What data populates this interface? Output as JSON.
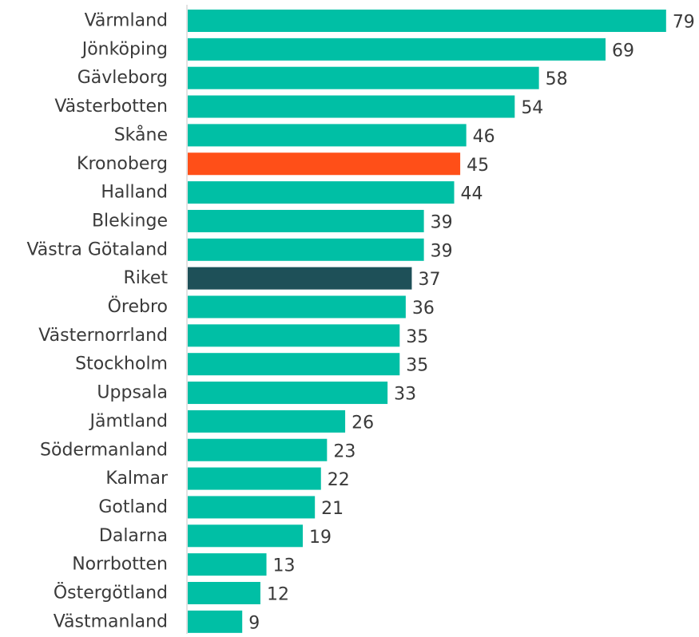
{
  "chart_data": {
    "type": "bar",
    "orientation": "horizontal",
    "categories": [
      "Värmland",
      "Jönköping",
      "Gävleborg",
      "Västerbotten",
      "Skåne",
      "Kronoberg",
      "Halland",
      "Blekinge",
      "Västra Götaland",
      "Riket",
      "Örebro",
      "Västernorrland",
      "Stockholm",
      "Uppsala",
      "Jämtland",
      "Södermanland",
      "Kalmar",
      "Gotland",
      "Dalarna",
      "Norrbotten",
      "Östergötland",
      "Västmanland"
    ],
    "values": [
      79,
      69,
      58,
      54,
      46,
      45,
      44,
      39,
      39,
      37,
      36,
      35,
      35,
      33,
      26,
      23,
      22,
      21,
      19,
      13,
      12,
      9
    ],
    "title": "",
    "xlabel": "",
    "ylabel": "",
    "xlim": [
      0,
      80
    ],
    "grid": false,
    "legend": "none",
    "colors": {
      "default": "#00BFA5",
      "highlight": "#FF4F18",
      "total": "#1E5058",
      "axis_line": "#D9D9D9",
      "category_text": "#3A3A3A",
      "value_text": "#3A3A3A"
    },
    "highlight_categories": {
      "Kronoberg": "highlight",
      "Riket": "total"
    }
  }
}
